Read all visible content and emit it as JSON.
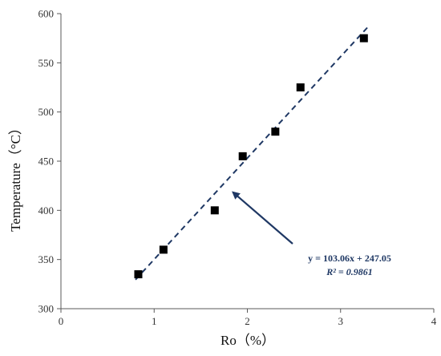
{
  "chart_data": {
    "type": "scatter",
    "title": "",
    "xlabel": "Ro（%）",
    "ylabel": "Temperature（°C）",
    "xlim": [
      0,
      4
    ],
    "ylim": [
      300,
      600
    ],
    "xticks": [
      "0",
      "1",
      "2",
      "3",
      "4"
    ],
    "yticks": [
      "300",
      "350",
      "400",
      "450",
      "500",
      "550",
      "600"
    ],
    "grid": false,
    "series": [
      {
        "marker": "square",
        "color": "#000000",
        "points": [
          {
            "x": 0.83,
            "y": 335
          },
          {
            "x": 1.1,
            "y": 360
          },
          {
            "x": 1.65,
            "y": 400
          },
          {
            "x": 1.95,
            "y": 455
          },
          {
            "x": 2.3,
            "y": 480
          },
          {
            "x": 2.57,
            "y": 525
          },
          {
            "x": 3.25,
            "y": 575
          }
        ]
      }
    ],
    "trendline": {
      "style": "dashed",
      "color": "#1f3864",
      "slope": 103.06,
      "intercept": 247.05,
      "x_range": [
        0.8,
        3.3
      ]
    },
    "annotation": {
      "equation": "y = 103.06x + 247.05",
      "r_squared": "R² = 0.9861",
      "arrow_target": {
        "x": 1.82,
        "y": 420
      },
      "color": "#1f3864"
    }
  }
}
